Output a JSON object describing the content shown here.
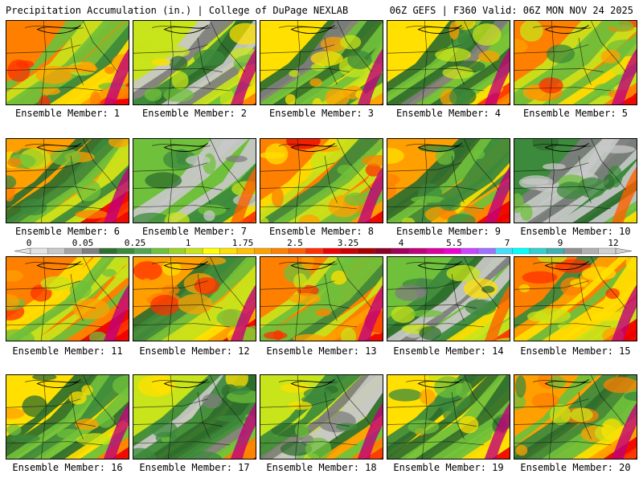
{
  "header": {
    "left": "Precipitation Accumulation (in.) | College of DuPage NEXLAB",
    "right": "06Z GEFS | F360 Valid: 06Z MON NOV 24 2025"
  },
  "label_prefix": "Ensemble Member: ",
  "members": [
    {
      "number": "1",
      "wet": 0.3,
      "seed": 11
    },
    {
      "number": "2",
      "wet": 0.62,
      "seed": 23
    },
    {
      "number": "3",
      "wet": 0.48,
      "seed": 37
    },
    {
      "number": "4",
      "wet": 0.55,
      "seed": 41
    },
    {
      "number": "5",
      "wet": 0.32,
      "seed": 53
    },
    {
      "number": "6",
      "wet": 0.38,
      "seed": 67
    },
    {
      "number": "7",
      "wet": 0.7,
      "seed": 71
    },
    {
      "number": "8",
      "wet": 0.28,
      "seed": 83
    },
    {
      "number": "9",
      "wet": 0.42,
      "seed": 97
    },
    {
      "number": "10",
      "wet": 0.78,
      "seed": 101
    },
    {
      "number": "11",
      "wet": 0.3,
      "seed": 113
    },
    {
      "number": "12",
      "wet": 0.36,
      "seed": 127
    },
    {
      "number": "13",
      "wet": 0.26,
      "seed": 131
    },
    {
      "number": "14",
      "wet": 0.66,
      "seed": 149
    },
    {
      "number": "15",
      "wet": 0.27,
      "seed": 151
    },
    {
      "number": "16",
      "wet": 0.46,
      "seed": 163
    },
    {
      "number": "17",
      "wet": 0.6,
      "seed": 173
    },
    {
      "number": "18",
      "wet": 0.58,
      "seed": 181
    },
    {
      "number": "19",
      "wet": 0.5,
      "seed": 191
    },
    {
      "number": "20",
      "wet": 0.4,
      "seed": 197
    }
  ],
  "colorbar": {
    "ticks": [
      "0",
      "0.05",
      "0.25",
      "1",
      "1.75",
      "2.5",
      "3.25",
      "4",
      "5.5",
      "7",
      "9",
      "12"
    ],
    "colors": [
      "#e2e2e2",
      "#c8c8c8",
      "#a4a4a4",
      "#7e7e7e",
      "#2e6e2e",
      "#3c8a3c",
      "#52a552",
      "#6fc03b",
      "#9ad322",
      "#c8e41a",
      "#ffff00",
      "#ffe000",
      "#ffc000",
      "#ffa000",
      "#ff8000",
      "#ff6000",
      "#ff3000",
      "#ee0000",
      "#cc0000",
      "#a80000",
      "#8b0026",
      "#a0005a",
      "#c0007a",
      "#dd00a0",
      "#f000d0",
      "#cc44ff",
      "#a070ff",
      "#40e0ff",
      "#00ffff",
      "#30d0d0",
      "#40b0b0",
      "#909090",
      "#b0b0b0",
      "#d0d0d0"
    ]
  }
}
